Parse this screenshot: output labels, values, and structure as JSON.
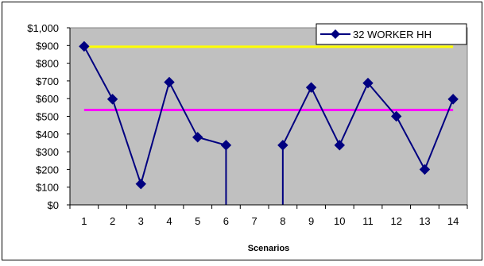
{
  "chart_data": {
    "type": "line",
    "title": "",
    "xlabel": "Scenarios",
    "ylabel": "",
    "categories": [
      "1",
      "2",
      "3",
      "4",
      "5",
      "6",
      "7",
      "8",
      "9",
      "10",
      "11",
      "12",
      "13",
      "14"
    ],
    "ylim": [
      0,
      1000
    ],
    "yticks": [
      "$0",
      "$100",
      "$200",
      "$300",
      "$400",
      "$500",
      "$600",
      "$700",
      "$800",
      "$900",
      "$1,000"
    ],
    "grid": false,
    "plot_background": "#c0c0c0",
    "legend_position": "top-right",
    "series": [
      {
        "name": "32 WORKER HH",
        "color": "#000080",
        "marker": "diamond",
        "values": [
          895,
          597,
          118,
          693,
          382,
          337,
          null,
          337,
          663,
          337,
          688,
          500,
          200,
          597
        ],
        "drops_below_axis_after": 6,
        "rises_from_below_axis_before": 8
      }
    ],
    "reference_lines": [
      {
        "value": 893,
        "color": "#ffff00",
        "from": "1",
        "to": "14"
      },
      {
        "value": 536,
        "color": "#ff00ff",
        "from": "1",
        "to": "14"
      }
    ]
  }
}
